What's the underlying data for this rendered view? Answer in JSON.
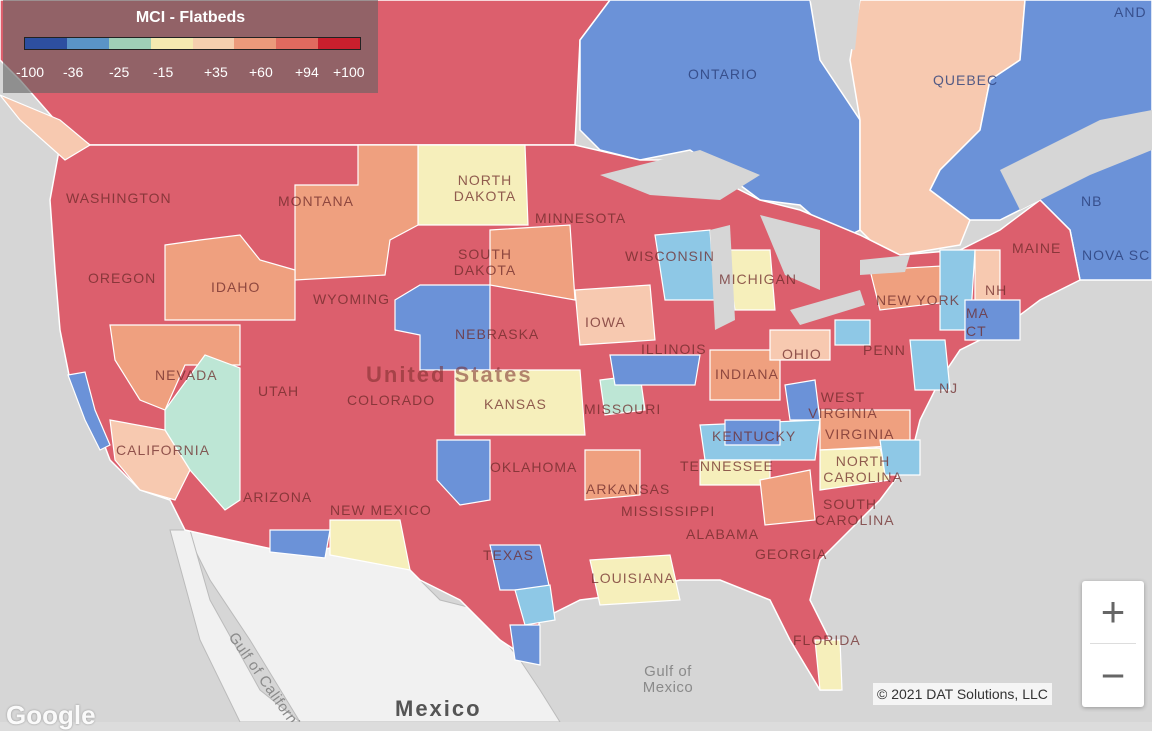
{
  "legend": {
    "title": "MCI - Flatbeds",
    "colors": [
      "#2d4fa0",
      "#5a94c6",
      "#9fcfb7",
      "#f5eab0",
      "#f5cfae",
      "#eb9a7b",
      "#e06a5f",
      "#c91f2d"
    ],
    "ticks": [
      "-100",
      "-36",
      "-25",
      "-15",
      "+35",
      "+60",
      "+94",
      "+100"
    ]
  },
  "fills": {
    "red": "#dc5f6d",
    "blue": "#6b92d8",
    "lightblue": "#8ec8e6",
    "yellow": "#f6efbb",
    "peach": "#f7c9b0",
    "orange": "#efa07f",
    "teal": "#bde6d5",
    "land": "#e9e9e9",
    "water": "#d6d6d6"
  },
  "labels": {
    "provinces": [
      "ONTARIO",
      "QUEBEC",
      "NB",
      "NOVA SC",
      "AND"
    ],
    "states": [
      "WASHINGTON",
      "OREGON",
      "CALIFORNIA",
      "NEVADA",
      "IDAHO",
      "MONTANA",
      "WYOMING",
      "UTAH",
      "ARIZONA",
      "COLORADO",
      "NEW MEXICO",
      "NORTH DAKOTA",
      "SOUTH DAKOTA",
      "NEBRASKA",
      "KANSAS",
      "OKLAHOMA",
      "TEXAS",
      "MINNESOTA",
      "IOWA",
      "MISSOURI",
      "ARKANSAS",
      "LOUISIANA",
      "WISCONSIN",
      "ILLINOIS",
      "MISSISSIPPI",
      "MICHIGAN",
      "INDIANA",
      "KENTUCKY",
      "TENNESSEE",
      "ALABAMA",
      "GEORGIA",
      "FLORIDA",
      "OHIO",
      "WEST VIRGINIA",
      "VIRGINIA",
      "NORTH CAROLINA",
      "SOUTH CAROLINA",
      "PENN",
      "NEW YORK",
      "MAINE",
      "NH",
      "MA",
      "CT",
      "NJ"
    ],
    "us": "United States",
    "mexico": "Mexico",
    "gulf_california": "Gulf of California",
    "gulf_mexico": "Gulf of Mexico"
  },
  "controls": {
    "zoom_in": "+",
    "zoom_out": "−"
  },
  "copyright": "© 2021 DAT Solutions, LLC",
  "google": "Google"
}
